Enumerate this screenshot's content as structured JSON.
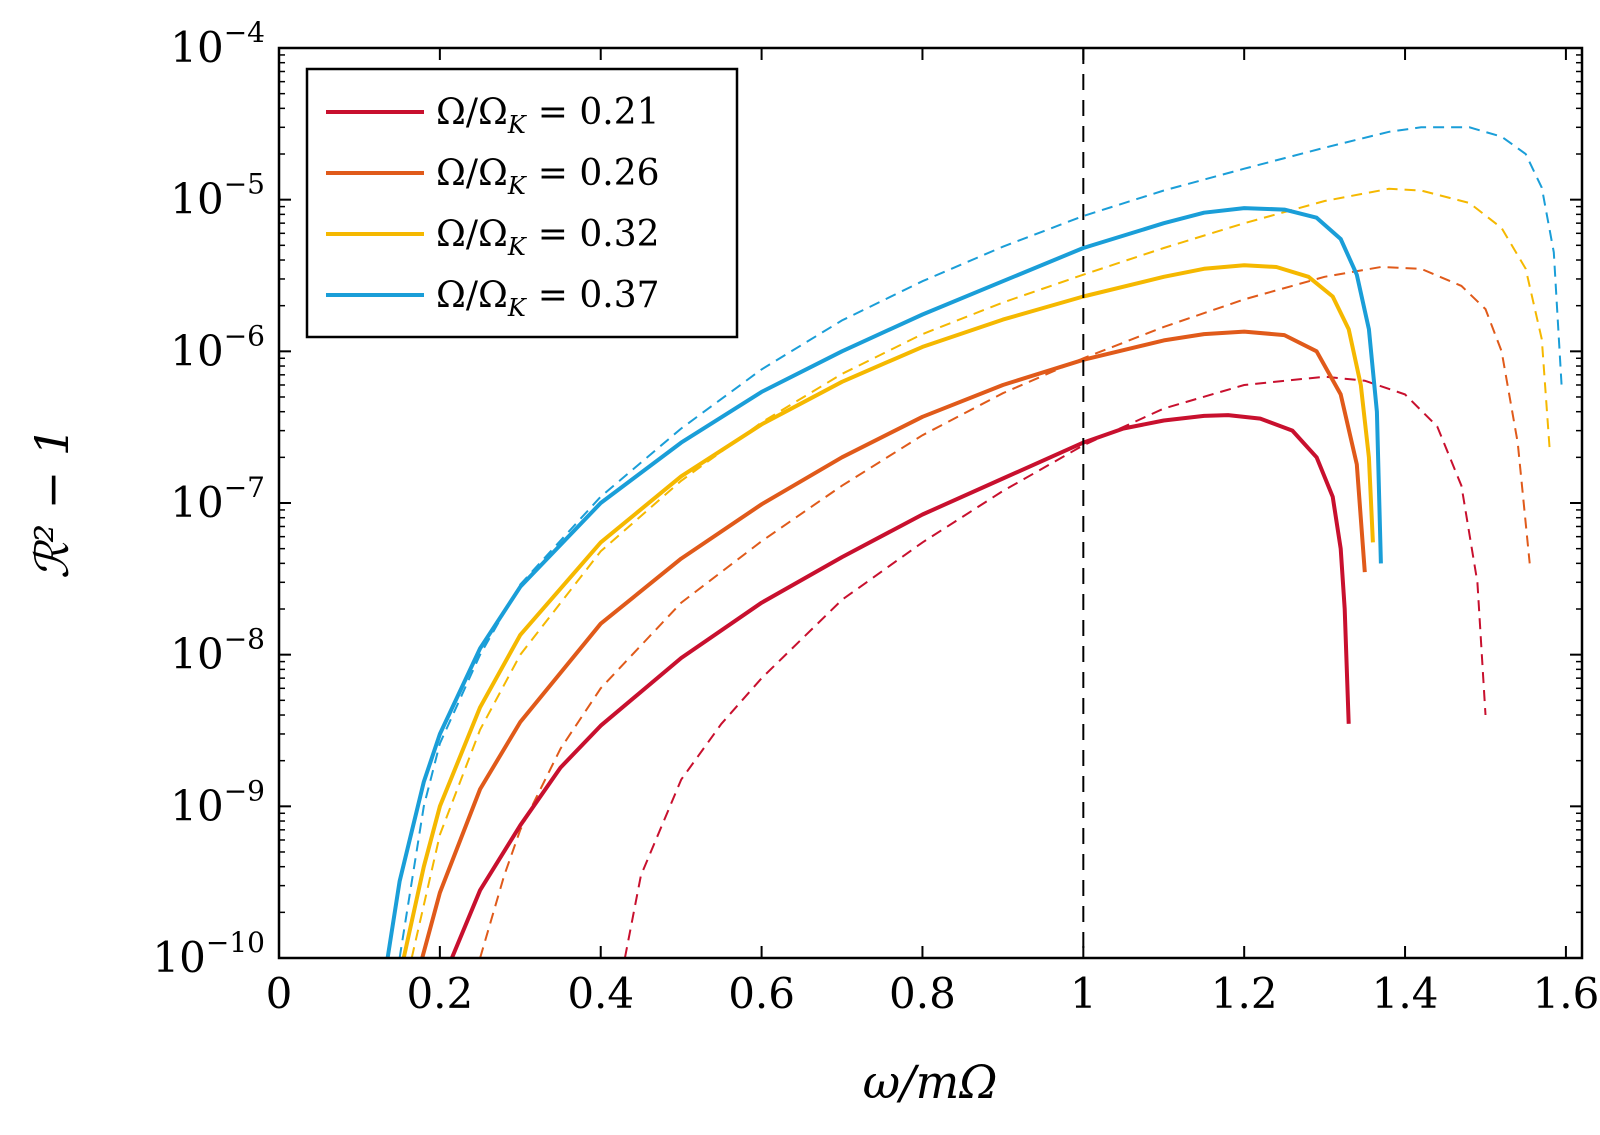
{
  "chart_data": {
    "type": "line",
    "xlabel": "ω/mΩ",
    "ylabel": "ℛ² − 1",
    "xlim": [
      0,
      1.62
    ],
    "ylim": [
      1e-10,
      0.0001
    ],
    "yscale": "log",
    "grid": false,
    "legend_position": "top-left",
    "x_ticks": [
      {
        "value": 0,
        "label": "0"
      },
      {
        "value": 0.2,
        "label": "0.2"
      },
      {
        "value": 0.4,
        "label": "0.4"
      },
      {
        "value": 0.6,
        "label": "0.6"
      },
      {
        "value": 0.8,
        "label": "0.8"
      },
      {
        "value": 1,
        "label": "1"
      },
      {
        "value": 1.2,
        "label": "1.2"
      },
      {
        "value": 1.4,
        "label": "1.4"
      },
      {
        "value": 1.6,
        "label": "1.6"
      }
    ],
    "y_ticks": [
      {
        "value": 1e-10,
        "base": "10",
        "exp": "−10"
      },
      {
        "value": 1e-09,
        "base": "10",
        "exp": "−9"
      },
      {
        "value": 1e-08,
        "base": "10",
        "exp": "−8"
      },
      {
        "value": 1e-07,
        "base": "10",
        "exp": "−7"
      },
      {
        "value": 1e-06,
        "base": "10",
        "exp": "−6"
      },
      {
        "value": 1e-05,
        "base": "10",
        "exp": "−5"
      },
      {
        "value": 0.0001,
        "base": "10",
        "exp": "−4"
      }
    ],
    "vline": {
      "x": 1,
      "style": "dashed",
      "color": "#000000"
    },
    "series": [
      {
        "name": "Ω/Ω_K = 0.21",
        "legend_main": "Ω/Ω",
        "legend_sub": "K",
        "legend_value": "= 0.21",
        "color": "#c8102e",
        "solid": {
          "x": [
            0.215,
            0.25,
            0.3,
            0.35,
            0.4,
            0.5,
            0.6,
            0.7,
            0.8,
            0.9,
            1.0,
            1.05,
            1.1,
            1.15,
            1.18,
            1.22,
            1.26,
            1.29,
            1.31,
            1.32,
            1.325,
            1.33
          ],
          "y": [
            1e-10,
            2.8e-10,
            7.5e-10,
            1.8e-09,
            3.4e-09,
            9.5e-09,
            2.2e-08,
            4.4e-08,
            8.4e-08,
            1.45e-07,
            2.5e-07,
            3.1e-07,
            3.5e-07,
            3.75e-07,
            3.8e-07,
            3.6e-07,
            3e-07,
            2e-07,
            1.1e-07,
            5e-08,
            2e-08,
            3.5e-09
          ]
        },
        "dashed": {
          "x": [
            0.43,
            0.45,
            0.5,
            0.55,
            0.6,
            0.7,
            0.8,
            0.9,
            1.0,
            1.1,
            1.2,
            1.3,
            1.35,
            1.4,
            1.44,
            1.47,
            1.49,
            1.5
          ],
          "y": [
            1e-10,
            3.5e-10,
            1.5e-09,
            3.5e-09,
            7e-09,
            2.3e-08,
            5.5e-08,
            1.2e-07,
            2.4e-07,
            4.2e-07,
            6e-07,
            6.8e-07,
            6.4e-07,
            5.2e-07,
            3.2e-07,
            1.3e-07,
            3e-08,
            4e-09
          ]
        }
      },
      {
        "name": "Ω/Ω_K = 0.26",
        "legend_main": "Ω/Ω",
        "legend_sub": "K",
        "legend_value": "= 0.26",
        "color": "#e05a1a",
        "solid": {
          "x": [
            0.178,
            0.2,
            0.25,
            0.3,
            0.4,
            0.5,
            0.6,
            0.7,
            0.8,
            0.9,
            1.0,
            1.1,
            1.15,
            1.2,
            1.25,
            1.29,
            1.32,
            1.34,
            1.35
          ],
          "y": [
            1e-10,
            2.7e-10,
            1.3e-09,
            3.6e-09,
            1.6e-08,
            4.3e-08,
            9.8e-08,
            2e-07,
            3.7e-07,
            6e-07,
            8.8e-07,
            1.18e-06,
            1.3e-06,
            1.35e-06,
            1.28e-06,
            1e-06,
            5.2e-07,
            1.8e-07,
            3.5e-08
          ]
        },
        "dashed": {
          "x": [
            0.25,
            0.28,
            0.3,
            0.35,
            0.4,
            0.5,
            0.6,
            0.7,
            0.8,
            0.9,
            1.0,
            1.1,
            1.2,
            1.3,
            1.37,
            1.42,
            1.47,
            1.5,
            1.52,
            1.54,
            1.555
          ],
          "y": [
            1e-10,
            3.5e-10,
            7e-10,
            2.4e-09,
            6e-09,
            2.2e-08,
            5.6e-08,
            1.3e-07,
            2.8e-07,
            5.3e-07,
            9e-07,
            1.45e-06,
            2.2e-06,
            3.1e-06,
            3.6e-06,
            3.5e-06,
            2.7e-06,
            1.9e-06,
            1e-06,
            2.5e-07,
            4e-08
          ]
        }
      },
      {
        "name": "Ω/Ω_K = 0.32",
        "legend_main": "Ω/Ω",
        "legend_sub": "K",
        "legend_value": "= 0.32",
        "color": "#f5b800",
        "solid": {
          "x": [
            0.155,
            0.18,
            0.2,
            0.25,
            0.3,
            0.4,
            0.5,
            0.6,
            0.7,
            0.8,
            0.9,
            1.0,
            1.1,
            1.15,
            1.2,
            1.24,
            1.28,
            1.31,
            1.33,
            1.345,
            1.355,
            1.36
          ],
          "y": [
            1e-10,
            4e-10,
            1e-09,
            4.5e-09,
            1.35e-08,
            5.5e-08,
            1.5e-07,
            3.3e-07,
            6.3e-07,
            1.07e-06,
            1.62e-06,
            2.3e-06,
            3.1e-06,
            3.5e-06,
            3.7e-06,
            3.6e-06,
            3.1e-06,
            2.3e-06,
            1.4e-06,
            6e-07,
            2e-07,
            5.5e-08
          ]
        },
        "dashed": {
          "x": [
            0.165,
            0.2,
            0.25,
            0.3,
            0.4,
            0.5,
            0.6,
            0.7,
            0.8,
            0.9,
            1.0,
            1.1,
            1.2,
            1.3,
            1.38,
            1.42,
            1.48,
            1.52,
            1.55,
            1.57,
            1.58
          ],
          "y": [
            1e-10,
            6.5e-10,
            3.2e-09,
            1e-08,
            4.8e-08,
            1.4e-07,
            3.4e-07,
            7.1e-07,
            1.3e-06,
            2.1e-06,
            3.2e-06,
            4.8e-06,
            7e-06,
            9.8e-06,
            1.18e-05,
            1.15e-05,
            9.5e-06,
            6.5e-06,
            3.5e-06,
            1.2e-06,
            2.2e-07
          ]
        }
      },
      {
        "name": "Ω/Ω_K = 0.37",
        "legend_main": "Ω/Ω",
        "legend_sub": "K",
        "legend_value": "= 0.37",
        "color": "#1a9ed8",
        "solid": {
          "x": [
            0.135,
            0.15,
            0.18,
            0.2,
            0.25,
            0.3,
            0.4,
            0.5,
            0.6,
            0.7,
            0.8,
            0.9,
            1.0,
            1.1,
            1.15,
            1.2,
            1.25,
            1.29,
            1.32,
            1.34,
            1.355,
            1.365,
            1.37
          ],
          "y": [
            1e-10,
            3.2e-10,
            1.45e-09,
            3e-09,
            1.1e-08,
            2.8e-08,
            1e-07,
            2.5e-07,
            5.4e-07,
            1e-06,
            1.75e-06,
            2.9e-06,
            4.8e-06,
            7e-06,
            8.2e-06,
            8.8e-06,
            8.6e-06,
            7.6e-06,
            5.5e-06,
            3.2e-06,
            1.4e-06,
            4e-07,
            4e-08
          ]
        },
        "dashed": {
          "x": [
            0.15,
            0.18,
            0.2,
            0.25,
            0.3,
            0.4,
            0.5,
            0.6,
            0.7,
            0.8,
            0.9,
            1.0,
            1.1,
            1.2,
            1.3,
            1.38,
            1.42,
            1.48,
            1.52,
            1.55,
            1.57,
            1.585,
            1.595
          ],
          "y": [
            1e-10,
            1e-09,
            2.6e-09,
            1e-08,
            2.9e-08,
            1.1e-07,
            3.1e-07,
            7.6e-07,
            1.6e-06,
            2.9e-06,
            4.9e-06,
            7.8e-06,
            1.15e-05,
            1.6e-05,
            2.2e-05,
            2.8e-05,
            3e-05,
            3e-05,
            2.6e-05,
            2e-05,
            1.2e-05,
            4.5e-06,
            5.5e-07
          ]
        }
      }
    ]
  }
}
